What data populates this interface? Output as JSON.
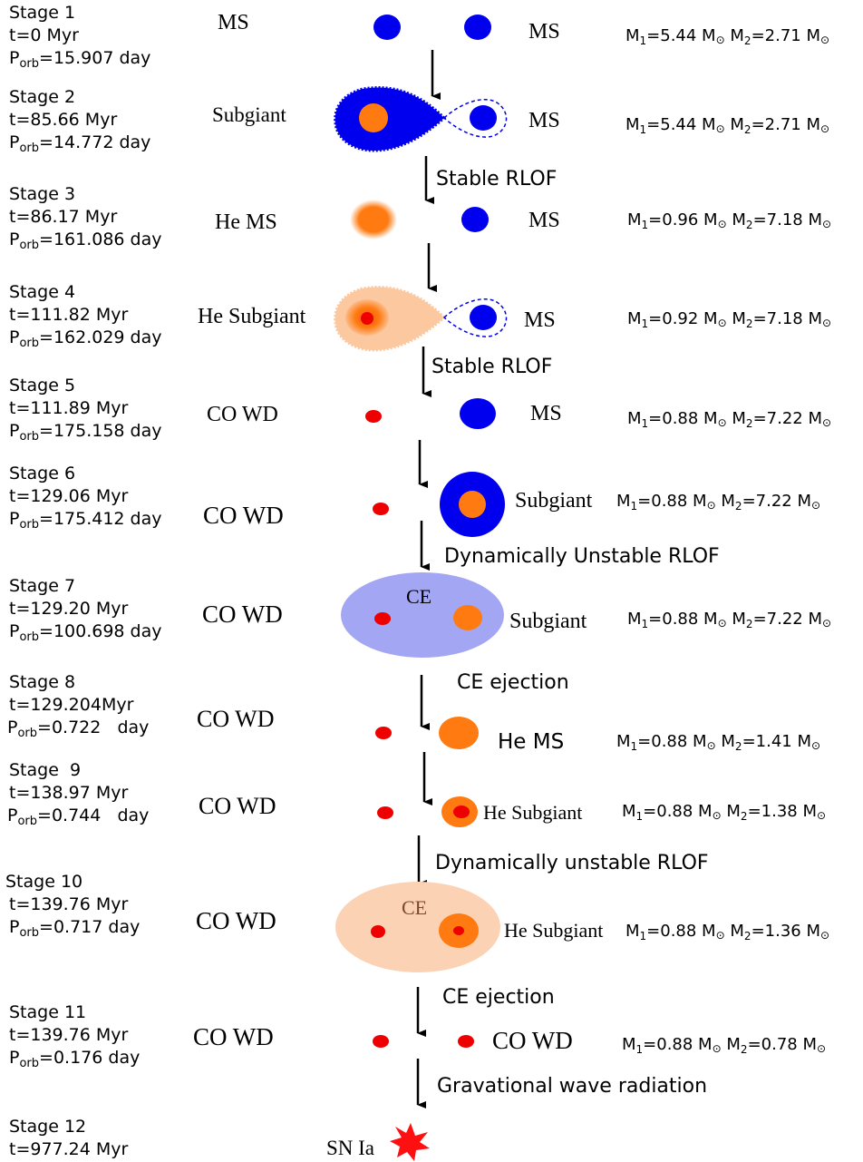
{
  "colors": {
    "main_sequence": "#0000ee",
    "helium_star": "#ff7a10",
    "white_dwarf": "#ee0000",
    "he_envelope": "#fcc8a0",
    "common_envelope_blue": "#a3a6f2",
    "common_envelope_peach": "#fcd2b4"
  },
  "stages": [
    {
      "label": "Stage 1",
      "t": "t=0 Myr",
      "porb": "P",
      "porb_sub": "orb",
      "porb_val": "=15.907 day",
      "star1": "MS",
      "star2": "MS",
      "m1": "M",
      "m1_sub": "1",
      "m1_val": "=5.44 M",
      "m2": " M",
      "m2_sub": "2",
      "m2_val": "=2.71 M",
      "sun": "⊙"
    },
    {
      "label": "Stage 2",
      "t": "t=85.66 Myr",
      "porb": "P",
      "porb_sub": "orb",
      "porb_val": "=14.772 day",
      "star1": "Subgiant",
      "star2": "MS",
      "m1": "M",
      "m1_sub": "1",
      "m1_val": "=5.44 M",
      "m2": " M",
      "m2_sub": "2",
      "m2_val": "=2.71 M",
      "sun": "⊙"
    },
    {
      "label": "Stage 3",
      "t": "t=86.17 Myr",
      "porb": "P",
      "porb_sub": "orb",
      "porb_val": "=161.086 day",
      "star1": "He MS",
      "star2": "MS",
      "m1": "M",
      "m1_sub": "1",
      "m1_val": "=0.96 M",
      "m2": " M",
      "m2_sub": "2",
      "m2_val": "=7.18 M",
      "sun": "⊙"
    },
    {
      "label": "Stage 4",
      "t": "t=111.82 Myr",
      "porb": "P",
      "porb_sub": "orb",
      "porb_val": "=162.029 day",
      "star1": "He Subgiant",
      "star2": "MS",
      "m1": "M",
      "m1_sub": "1",
      "m1_val": "=0.92 M",
      "m2": " M",
      "m2_sub": "2",
      "m2_val": "=7.18 M",
      "sun": "⊙"
    },
    {
      "label": "Stage 5",
      "t": "t=111.89 Myr",
      "porb": "P",
      "porb_sub": "orb",
      "porb_val": "=175.158 day",
      "star1": "CO WD",
      "star2": "MS",
      "m1": "M",
      "m1_sub": "1",
      "m1_val": "=0.88 M",
      "m2": " M",
      "m2_sub": "2",
      "m2_val": "=7.22 M",
      "sun": "⊙"
    },
    {
      "label": "Stage 6",
      "t": "t=129.06 Myr",
      "porb": "P",
      "porb_sub": "orb",
      "porb_val": "=175.412 day",
      "star1": "CO WD",
      "star2": "Subgiant",
      "m1": "M",
      "m1_sub": "1",
      "m1_val": "=0.88 M",
      "m2": " M",
      "m2_sub": "2",
      "m2_val": "=7.22 M",
      "sun": "⊙"
    },
    {
      "label": "Stage 7",
      "t": "t=129.20 Myr",
      "porb": "P",
      "porb_sub": "orb",
      "porb_val": "=100.698 day",
      "star1": "CO WD",
      "star2": "Subgiant",
      "envelope": "CE",
      "m1": "M",
      "m1_sub": "1",
      "m1_val": "=0.88 M",
      "m2": " M",
      "m2_sub": "2",
      "m2_val": "=7.22 M",
      "sun": "⊙"
    },
    {
      "label": "Stage 8",
      "t": "t=129.204Myr",
      "porb": "P",
      "porb_sub": "orb",
      "porb_val": "=0.722   day",
      "star1": "CO WD",
      "star2": "He MS",
      "m1": "M",
      "m1_sub": "1",
      "m1_val": "=0.88 M",
      "m2": " M",
      "m2_sub": "2",
      "m2_val": "=1.41 M",
      "sun": "⊙"
    },
    {
      "label": "Stage  9",
      "t": "t=138.97 Myr",
      "porb": "P",
      "porb_sub": "orb",
      "porb_val": "=0.744   day",
      "star1": "CO WD",
      "star2": "He Subgiant",
      "m1": "M",
      "m1_sub": "1",
      "m1_val": "=0.88 M",
      "m2": " M",
      "m2_sub": "2",
      "m2_val": "=1.38 M",
      "sun": "⊙"
    },
    {
      "label": "Stage 10",
      "t": "t=139.76 Myr",
      "porb": "P",
      "porb_sub": "orb",
      "porb_val": "=0.717 day",
      "star1": "CO WD",
      "star2": "He Subgiant",
      "envelope": "CE",
      "m1": "M",
      "m1_sub": "1",
      "m1_val": "=0.88 M",
      "m2": " M",
      "m2_sub": "2",
      "m2_val": "=1.36 M",
      "sun": "⊙"
    },
    {
      "label": "Stage 11",
      "t": "t=139.76 Myr",
      "porb": "P",
      "porb_sub": "orb",
      "porb_val": "=0.176 day",
      "star1": "CO WD",
      "star2": "CO WD",
      "m1": "M",
      "m1_sub": "1",
      "m1_val": "=0.88 M",
      "m2": " M",
      "m2_sub": "2",
      "m2_val": "=0.78 M",
      "sun": "⊙"
    },
    {
      "label": "Stage 12",
      "t": "t=977.24 Myr",
      "star1": "SN Ia"
    }
  ],
  "transitions": [
    "Stable RLOF",
    "Stable RLOF",
    "Dynamically Unstable RLOF",
    "CE ejection",
    "Dynamically unstable RLOF",
    "CE ejection",
    "Gravational wave radiation"
  ]
}
